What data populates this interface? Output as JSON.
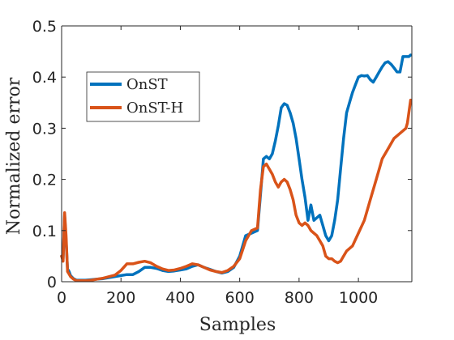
{
  "chart_data": {
    "type": "line",
    "title": "",
    "xlabel": "Samples",
    "ylabel": "Normalized error",
    "xlim": [
      0,
      1180
    ],
    "ylim": [
      0,
      0.5
    ],
    "xticks": [
      0,
      200,
      400,
      600,
      800,
      1000
    ],
    "xtick_labels": [
      "0",
      "200",
      "400",
      "600",
      "800",
      "1000"
    ],
    "yticks": [
      0,
      0.1,
      0.2,
      0.3,
      0.4,
      0.5
    ],
    "ytick_labels": [
      "0",
      "0.1",
      "0.2",
      "0.3",
      "0.4",
      "0.5"
    ],
    "grid": false,
    "legend_position": "upper-left",
    "series": [
      {
        "name": "OnST",
        "color": "#0072BD",
        "x": [
          0,
          5,
          10,
          15,
          20,
          25,
          30,
          40,
          50,
          60,
          80,
          100,
          120,
          140,
          160,
          180,
          200,
          220,
          240,
          260,
          280,
          300,
          320,
          340,
          360,
          380,
          400,
          420,
          440,
          460,
          480,
          500,
          520,
          540,
          560,
          580,
          600,
          620,
          640,
          660,
          670,
          680,
          690,
          700,
          710,
          720,
          730,
          740,
          750,
          760,
          770,
          780,
          790,
          800,
          810,
          820,
          830,
          840,
          850,
          860,
          870,
          880,
          890,
          900,
          910,
          920,
          930,
          940,
          950,
          960,
          970,
          980,
          990,
          1000,
          1010,
          1020,
          1030,
          1040,
          1050,
          1060,
          1070,
          1080,
          1090,
          1100,
          1110,
          1120,
          1130,
          1140,
          1150,
          1160,
          1170,
          1176
        ],
        "values": [
          0.05,
          0.045,
          0.13,
          0.08,
          0.025,
          0.02,
          0.012,
          0.006,
          0.003,
          0.003,
          0.003,
          0.004,
          0.005,
          0.006,
          0.008,
          0.01,
          0.012,
          0.014,
          0.014,
          0.02,
          0.028,
          0.028,
          0.026,
          0.022,
          0.02,
          0.021,
          0.023,
          0.025,
          0.03,
          0.033,
          0.028,
          0.024,
          0.02,
          0.017,
          0.02,
          0.028,
          0.05,
          0.09,
          0.095,
          0.1,
          0.17,
          0.24,
          0.245,
          0.24,
          0.25,
          0.275,
          0.305,
          0.34,
          0.348,
          0.345,
          0.33,
          0.31,
          0.28,
          0.24,
          0.2,
          0.165,
          0.12,
          0.15,
          0.12,
          0.125,
          0.13,
          0.11,
          0.09,
          0.08,
          0.09,
          0.12,
          0.16,
          0.22,
          0.28,
          0.33,
          0.35,
          0.37,
          0.385,
          0.4,
          0.403,
          0.402,
          0.403,
          0.395,
          0.39,
          0.4,
          0.41,
          0.42,
          0.428,
          0.43,
          0.425,
          0.418,
          0.41,
          0.41,
          0.44,
          0.44,
          0.44,
          0.443
        ]
      },
      {
        "name": "OnST-H",
        "color": "#D95319",
        "x": [
          0,
          5,
          10,
          15,
          20,
          25,
          30,
          40,
          50,
          60,
          80,
          100,
          120,
          140,
          160,
          180,
          200,
          220,
          240,
          260,
          280,
          300,
          320,
          340,
          360,
          380,
          400,
          420,
          440,
          460,
          480,
          500,
          520,
          540,
          560,
          580,
          600,
          620,
          640,
          660,
          670,
          680,
          690,
          700,
          710,
          720,
          730,
          740,
          750,
          760,
          770,
          780,
          790,
          800,
          810,
          820,
          830,
          840,
          850,
          860,
          870,
          880,
          890,
          900,
          910,
          920,
          930,
          940,
          950,
          960,
          980,
          1000,
          1020,
          1040,
          1060,
          1080,
          1100,
          1120,
          1140,
          1160,
          1165,
          1170,
          1176
        ],
        "values": [
          0.05,
          0.04,
          0.135,
          0.09,
          0.02,
          0.015,
          0.01,
          0.005,
          0.002,
          0.002,
          0.002,
          0.003,
          0.005,
          0.007,
          0.01,
          0.013,
          0.022,
          0.035,
          0.035,
          0.038,
          0.04,
          0.037,
          0.03,
          0.025,
          0.022,
          0.023,
          0.026,
          0.03,
          0.035,
          0.033,
          0.028,
          0.023,
          0.02,
          0.018,
          0.022,
          0.03,
          0.045,
          0.08,
          0.1,
          0.105,
          0.18,
          0.225,
          0.23,
          0.22,
          0.21,
          0.195,
          0.185,
          0.195,
          0.2,
          0.195,
          0.18,
          0.16,
          0.13,
          0.115,
          0.11,
          0.115,
          0.11,
          0.1,
          0.095,
          0.09,
          0.08,
          0.07,
          0.05,
          0.045,
          0.045,
          0.04,
          0.037,
          0.04,
          0.05,
          0.06,
          0.07,
          0.095,
          0.12,
          0.16,
          0.2,
          0.24,
          0.26,
          0.28,
          0.29,
          0.3,
          0.31,
          0.33,
          0.355
        ]
      }
    ]
  }
}
